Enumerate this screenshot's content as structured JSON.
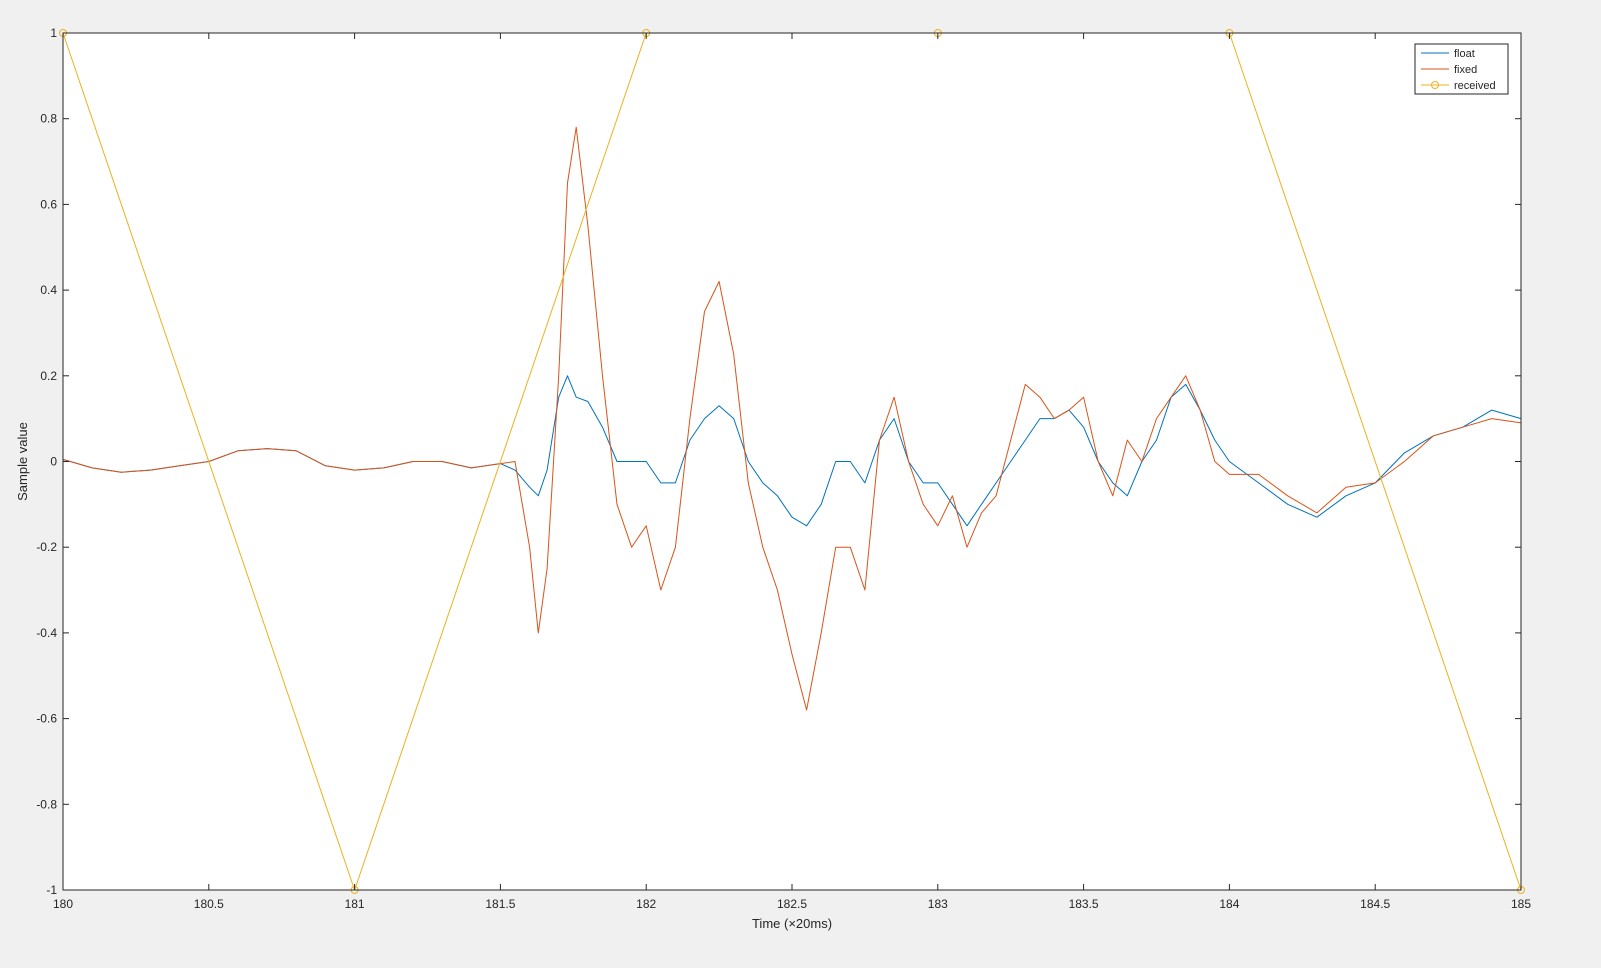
{
  "colors": {
    "figure_bg": "#f0f0f0",
    "axes_bg": "#ffffff",
    "float": "#0072bd",
    "fixed": "#d95319",
    "received": "#edb120",
    "axis": "#262626",
    "grid": "none"
  },
  "chart_data": {
    "type": "line",
    "title": "",
    "xlabel": "Time (×20ms)",
    "ylabel": "Sample value",
    "xlim": [
      180,
      185
    ],
    "ylim": [
      -1,
      1
    ],
    "xticks": [
      180,
      180.5,
      181,
      181.5,
      182,
      182.5,
      183,
      183.5,
      184,
      184.5,
      185
    ],
    "xtick_labels": [
      "180",
      "180.5",
      "181",
      "181.5",
      "182",
      "182.5",
      "183",
      "183.5",
      "184",
      "184.5",
      "185"
    ],
    "yticks": [
      -1,
      -0.8,
      -0.6,
      -0.4,
      -0.2,
      0,
      0.2,
      0.4,
      0.6,
      0.8,
      1
    ],
    "ytick_labels": [
      "-1",
      "-0.8",
      "-0.6",
      "-0.4",
      "-0.2",
      "0",
      "0.2",
      "0.4",
      "0.6",
      "0.8",
      "1"
    ],
    "grid": false,
    "legend_position": "top-right",
    "series": [
      {
        "name": "float",
        "color": "#0072bd",
        "marker": "none",
        "x": [
          180,
          180.1,
          180.2,
          180.3,
          180.4,
          180.5,
          180.6,
          180.7,
          180.8,
          180.9,
          181,
          181.1,
          181.2,
          181.3,
          181.4,
          181.5,
          181.55,
          181.6,
          181.63,
          181.66,
          181.7,
          181.73,
          181.76,
          181.8,
          181.85,
          181.9,
          181.95,
          182,
          182.05,
          182.1,
          182.15,
          182.2,
          182.25,
          182.3,
          182.35,
          182.4,
          182.45,
          182.5,
          182.55,
          182.6,
          182.65,
          182.7,
          182.75,
          182.8,
          182.85,
          182.9,
          182.95,
          183,
          183.05,
          183.1,
          183.15,
          183.2,
          183.25,
          183.3,
          183.35,
          183.4,
          183.45,
          183.5,
          183.55,
          183.6,
          183.65,
          183.7,
          183.75,
          183.8,
          183.85,
          183.9,
          183.95,
          184,
          184.1,
          184.2,
          184.3,
          184.4,
          184.5,
          184.6,
          184.7,
          184.8,
          184.9,
          185
        ],
        "y": [
          0.005,
          -0.015,
          -0.025,
          -0.02,
          -0.01,
          0.0,
          0.025,
          0.03,
          0.025,
          -0.01,
          -0.02,
          -0.015,
          0.0,
          0.0,
          -0.015,
          -0.005,
          -0.02,
          -0.06,
          -0.08,
          -0.02,
          0.15,
          0.2,
          0.15,
          0.14,
          0.08,
          0.0,
          0.0,
          0.0,
          -0.05,
          -0.05,
          0.05,
          0.1,
          0.13,
          0.1,
          0.0,
          -0.05,
          -0.08,
          -0.13,
          -0.15,
          -0.1,
          0.0,
          0.0,
          -0.05,
          0.05,
          0.1,
          0.0,
          -0.05,
          -0.05,
          -0.1,
          -0.15,
          -0.1,
          -0.05,
          0.0,
          0.05,
          0.1,
          0.1,
          0.12,
          0.08,
          0.0,
          -0.05,
          -0.08,
          0.0,
          0.05,
          0.15,
          0.18,
          0.12,
          0.05,
          0.0,
          -0.05,
          -0.1,
          -0.13,
          -0.08,
          -0.05,
          0.02,
          0.06,
          0.08,
          0.12,
          0.1
        ]
      },
      {
        "name": "fixed",
        "color": "#d95319",
        "marker": "none",
        "x": [
          180,
          180.1,
          180.2,
          180.3,
          180.4,
          180.5,
          180.6,
          180.7,
          180.8,
          180.9,
          181,
          181.1,
          181.2,
          181.3,
          181.4,
          181.5,
          181.55,
          181.6,
          181.63,
          181.66,
          181.7,
          181.73,
          181.76,
          181.8,
          181.85,
          181.9,
          181.95,
          182,
          182.05,
          182.1,
          182.15,
          182.2,
          182.25,
          182.3,
          182.35,
          182.4,
          182.45,
          182.5,
          182.55,
          182.6,
          182.65,
          182.7,
          182.75,
          182.8,
          182.85,
          182.9,
          182.95,
          183,
          183.05,
          183.1,
          183.15,
          183.2,
          183.25,
          183.3,
          183.35,
          183.4,
          183.45,
          183.5,
          183.55,
          183.6,
          183.65,
          183.7,
          183.75,
          183.8,
          183.85,
          183.9,
          183.95,
          184,
          184.1,
          184.2,
          184.3,
          184.4,
          184.5,
          184.6,
          184.7,
          184.8,
          184.9,
          185
        ],
        "y": [
          0.005,
          -0.015,
          -0.025,
          -0.02,
          -0.01,
          0.0,
          0.025,
          0.03,
          0.025,
          -0.01,
          -0.02,
          -0.015,
          0.0,
          0.0,
          -0.015,
          -0.005,
          0.0,
          -0.2,
          -0.4,
          -0.25,
          0.2,
          0.65,
          0.78,
          0.55,
          0.2,
          -0.1,
          -0.2,
          -0.15,
          -0.3,
          -0.2,
          0.1,
          0.35,
          0.42,
          0.25,
          -0.05,
          -0.2,
          -0.3,
          -0.45,
          -0.58,
          -0.4,
          -0.2,
          -0.2,
          -0.3,
          0.05,
          0.15,
          0.0,
          -0.1,
          -0.15,
          -0.08,
          -0.2,
          -0.12,
          -0.08,
          0.05,
          0.18,
          0.15,
          0.1,
          0.12,
          0.15,
          0.0,
          -0.08,
          0.05,
          0.0,
          0.1,
          0.15,
          0.2,
          0.12,
          0.0,
          -0.03,
          -0.03,
          -0.08,
          -0.12,
          -0.06,
          -0.05,
          0.0,
          0.06,
          0.08,
          0.1,
          0.09
        ]
      },
      {
        "name": "received",
        "color": "#edb120",
        "marker": "circle",
        "x": [
          180,
          181,
          182,
          183,
          184,
          185
        ],
        "y": [
          1,
          -1,
          1,
          1,
          1,
          -1
        ]
      }
    ]
  }
}
